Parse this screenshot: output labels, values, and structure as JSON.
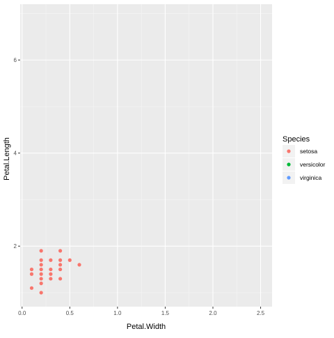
{
  "chart_data": {
    "type": "scatter",
    "title": "",
    "xlabel": "Petal.Width",
    "ylabel": "Petal.Length",
    "xlim": [
      -0.02,
      2.62
    ],
    "ylim": [
      0.7,
      7.2
    ],
    "x_ticks": [
      0.0,
      0.5,
      1.0,
      1.5,
      2.0,
      2.5
    ],
    "x_tick_labels": [
      "0.0",
      "0.5",
      "1.0",
      "1.5",
      "2.0",
      "2.5"
    ],
    "y_ticks": [
      2,
      4,
      6
    ],
    "y_tick_labels": [
      "2",
      "4",
      "6"
    ],
    "grid": true,
    "legend": {
      "title": "Species",
      "placement": "right",
      "entries": [
        {
          "label": "setosa",
          "color": "#F8766D"
        },
        {
          "label": "versicolor",
          "color": "#00BA38"
        },
        {
          "label": "virginica",
          "color": "#619CFF"
        }
      ]
    },
    "series": [
      {
        "name": "setosa",
        "color": "#F8766D",
        "points": [
          {
            "x": 0.2,
            "y": 1.9
          },
          {
            "x": 0.4,
            "y": 1.9
          },
          {
            "x": 0.2,
            "y": 1.7
          },
          {
            "x": 0.3,
            "y": 1.7
          },
          {
            "x": 0.4,
            "y": 1.7
          },
          {
            "x": 0.5,
            "y": 1.7
          },
          {
            "x": 0.2,
            "y": 1.6
          },
          {
            "x": 0.4,
            "y": 1.6
          },
          {
            "x": 0.6,
            "y": 1.6
          },
          {
            "x": 0.1,
            "y": 1.5
          },
          {
            "x": 0.2,
            "y": 1.5
          },
          {
            "x": 0.3,
            "y": 1.5
          },
          {
            "x": 0.4,
            "y": 1.5
          },
          {
            "x": 0.1,
            "y": 1.4
          },
          {
            "x": 0.2,
            "y": 1.4
          },
          {
            "x": 0.3,
            "y": 1.4
          },
          {
            "x": 0.2,
            "y": 1.3
          },
          {
            "x": 0.3,
            "y": 1.3
          },
          {
            "x": 0.4,
            "y": 1.3
          },
          {
            "x": 0.2,
            "y": 1.2
          },
          {
            "x": 0.1,
            "y": 1.1
          },
          {
            "x": 0.2,
            "y": 1.0
          }
        ]
      }
    ]
  }
}
